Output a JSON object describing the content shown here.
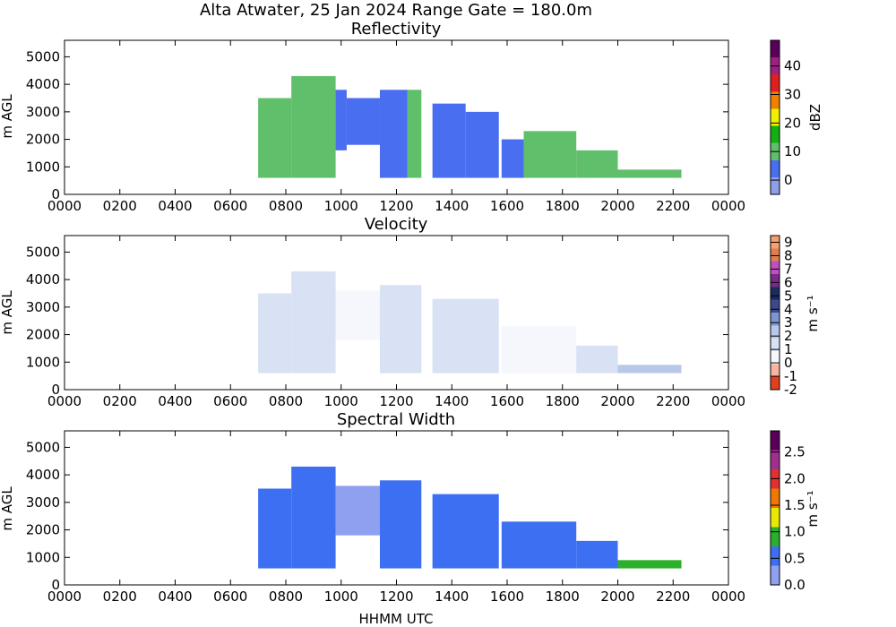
{
  "figure": {
    "suptitle": "Alta Atwater, 25 Jan 2024 Range Gate = 180.0m",
    "xlabel": "HHMM UTC"
  },
  "colors": {
    "reflectivity_scale": [
      "#8f9fe8",
      "#4a6ef0",
      "#5fbf6a",
      "#12b012",
      "#f0f000",
      "#f08000",
      "#e02020",
      "#a02080",
      "#5a005a"
    ],
    "velocity_scale": [
      "#e04020",
      "#f7b5a5",
      "#f5f7fc",
      "#d8e2f4",
      "#b8c8ea",
      "#7e96cf",
      "#3c4a8c",
      "#1b2b5e",
      "#7a2a8c",
      "#c050c0",
      "#e08050",
      "#f4a070"
    ],
    "width_scale": [
      "#8fa0f0",
      "#3d6ff3",
      "#2ab02a",
      "#e8e800",
      "#f07800",
      "#e03030",
      "#a03090",
      "#5a005a"
    ]
  },
  "chart_data": [
    {
      "type": "heatmap",
      "title": "Reflectivity",
      "ylabel": "m AGL",
      "xlabel": "",
      "x_ticks": [
        "0000",
        "0200",
        "0400",
        "0600",
        "0800",
        "1000",
        "1200",
        "1400",
        "1600",
        "1800",
        "2000",
        "2200",
        "0000"
      ],
      "xlim_hours": [
        0,
        24
      ],
      "y_ticks": [
        "0",
        "1000",
        "2000",
        "3000",
        "4000",
        "5000"
      ],
      "ylim": [
        0,
        5600
      ],
      "colorbar": {
        "label": "dBZ",
        "range": [
          -5,
          49
        ],
        "ticks": [
          "0",
          "10",
          "20",
          "30",
          "40"
        ]
      },
      "echo_segments": [
        {
          "start_h": 7.0,
          "end_h": 8.2,
          "base_m": 600,
          "top_m": 3500,
          "value": 10
        },
        {
          "start_h": 8.2,
          "end_h": 9.8,
          "base_m": 600,
          "top_m": 4300,
          "value": 8
        },
        {
          "start_h": 9.8,
          "end_h": 10.2,
          "base_m": 1600,
          "top_m": 3800,
          "value": 3
        },
        {
          "start_h": 10.2,
          "end_h": 11.4,
          "base_m": 1800,
          "top_m": 3500,
          "value": 2
        },
        {
          "start_h": 11.4,
          "end_h": 12.4,
          "base_m": 600,
          "top_m": 3800,
          "value": 4
        },
        {
          "start_h": 12.4,
          "end_h": 12.9,
          "base_m": 600,
          "top_m": 3800,
          "value": 8
        },
        {
          "start_h": 13.3,
          "end_h": 14.5,
          "base_m": 600,
          "top_m": 3300,
          "value": 3
        },
        {
          "start_h": 14.5,
          "end_h": 15.7,
          "base_m": 600,
          "top_m": 3000,
          "value": 2
        },
        {
          "start_h": 15.8,
          "end_h": 16.6,
          "base_m": 600,
          "top_m": 2000,
          "value": 5
        },
        {
          "start_h": 16.6,
          "end_h": 18.5,
          "base_m": 600,
          "top_m": 2300,
          "value": 7
        },
        {
          "start_h": 18.5,
          "end_h": 20.0,
          "base_m": 600,
          "top_m": 1600,
          "value": 12
        },
        {
          "start_h": 20.0,
          "end_h": 22.3,
          "base_m": 600,
          "top_m": 900,
          "value": 8
        }
      ]
    },
    {
      "type": "heatmap",
      "title": "Velocity",
      "ylabel": "m s⁻¹",
      "y_axis_label": "m AGL",
      "xlabel": "",
      "x_ticks": [
        "0000",
        "0200",
        "0400",
        "0600",
        "0800",
        "1000",
        "1200",
        "1400",
        "1600",
        "1800",
        "2000",
        "2200",
        "0000"
      ],
      "xlim_hours": [
        0,
        24
      ],
      "y_ticks": [
        "0",
        "1000",
        "2000",
        "3000",
        "4000",
        "5000"
      ],
      "ylim": [
        0,
        5600
      ],
      "colorbar": {
        "label": "m s⁻¹",
        "range": [
          -2,
          9.5
        ],
        "ticks": [
          "-2",
          "-1",
          "0",
          "1",
          "2",
          "3",
          "4",
          "5",
          "6",
          "7",
          "8",
          "9"
        ]
      },
      "echo_segments": [
        {
          "start_h": 7.0,
          "end_h": 8.2,
          "base_m": 600,
          "top_m": 3500,
          "value": 1.2
        },
        {
          "start_h": 8.2,
          "end_h": 9.8,
          "base_m": 600,
          "top_m": 4300,
          "value": 1.0
        },
        {
          "start_h": 9.8,
          "end_h": 11.4,
          "base_m": 1800,
          "top_m": 3600,
          "value": 0.8
        },
        {
          "start_h": 11.4,
          "end_h": 12.9,
          "base_m": 600,
          "top_m": 3800,
          "value": 1.0
        },
        {
          "start_h": 13.3,
          "end_h": 15.7,
          "base_m": 600,
          "top_m": 3300,
          "value": 1.0
        },
        {
          "start_h": 15.8,
          "end_h": 18.5,
          "base_m": 600,
          "top_m": 2300,
          "value": 0.6
        },
        {
          "start_h": 18.5,
          "end_h": 20.0,
          "base_m": 600,
          "top_m": 1600,
          "value": 1.5
        },
        {
          "start_h": 20.0,
          "end_h": 22.3,
          "base_m": 600,
          "top_m": 900,
          "value": 2.5
        }
      ]
    },
    {
      "type": "heatmap",
      "title": "Spectral Width",
      "ylabel": "m s⁻¹",
      "y_axis_label": "m AGL",
      "xlabel": "HHMM UTC",
      "x_ticks": [
        "0000",
        "0200",
        "0400",
        "0600",
        "0800",
        "1000",
        "1200",
        "1400",
        "1600",
        "1800",
        "2000",
        "2200",
        "0000"
      ],
      "xlim_hours": [
        0,
        24
      ],
      "y_ticks": [
        "0",
        "1000",
        "2000",
        "3000",
        "4000",
        "5000"
      ],
      "ylim": [
        0,
        5600
      ],
      "colorbar": {
        "label": "m s⁻¹",
        "range": [
          0,
          2.9
        ],
        "ticks": [
          "0.0",
          "0.5",
          "1.0",
          "1.5",
          "2.0",
          "2.5"
        ]
      },
      "echo_segments": [
        {
          "start_h": 7.0,
          "end_h": 8.2,
          "base_m": 600,
          "top_m": 3500,
          "value": 0.4
        },
        {
          "start_h": 8.2,
          "end_h": 9.8,
          "base_m": 600,
          "top_m": 4300,
          "value": 0.4
        },
        {
          "start_h": 9.8,
          "end_h": 11.4,
          "base_m": 1800,
          "top_m": 3600,
          "value": 0.35
        },
        {
          "start_h": 11.4,
          "end_h": 12.9,
          "base_m": 600,
          "top_m": 3800,
          "value": 0.4
        },
        {
          "start_h": 13.3,
          "end_h": 15.7,
          "base_m": 600,
          "top_m": 3300,
          "value": 0.4
        },
        {
          "start_h": 15.8,
          "end_h": 18.5,
          "base_m": 600,
          "top_m": 2300,
          "value": 0.4
        },
        {
          "start_h": 18.5,
          "end_h": 20.0,
          "base_m": 600,
          "top_m": 1600,
          "value": 0.6
        },
        {
          "start_h": 20.0,
          "end_h": 22.3,
          "base_m": 600,
          "top_m": 900,
          "value": 0.9
        }
      ]
    }
  ]
}
